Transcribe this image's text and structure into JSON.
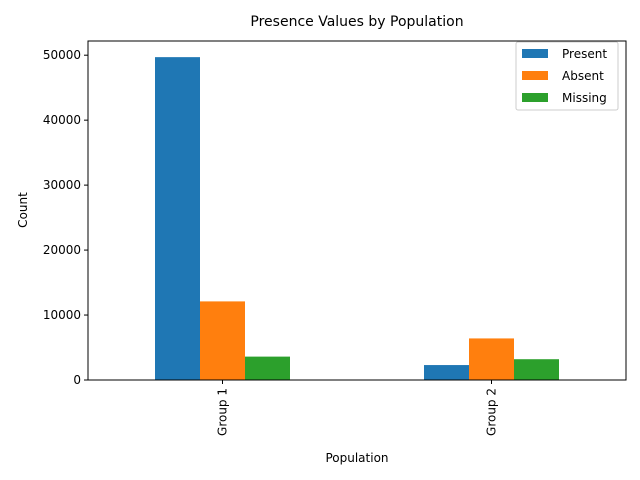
{
  "chart_data": {
    "type": "bar",
    "title": "Presence Values by Population",
    "xlabel": "Population",
    "ylabel": "Count",
    "categories": [
      "Group 1",
      "Group 2"
    ],
    "series": [
      {
        "name": "Present",
        "color": "#1f77b4",
        "values": [
          49700,
          2300
        ]
      },
      {
        "name": "Absent",
        "color": "#ff7f0e",
        "values": [
          12100,
          6400
        ]
      },
      {
        "name": "Missing",
        "color": "#2ca02c",
        "values": [
          3600,
          3200
        ]
      }
    ],
    "ylim": [
      0,
      52185
    ],
    "yticks": [
      0,
      10000,
      20000,
      30000,
      40000,
      50000
    ],
    "ytick_labels": [
      "0",
      "10000",
      "20000",
      "30000",
      "40000",
      "50000"
    ],
    "grid": false,
    "legend": "top-right"
  }
}
